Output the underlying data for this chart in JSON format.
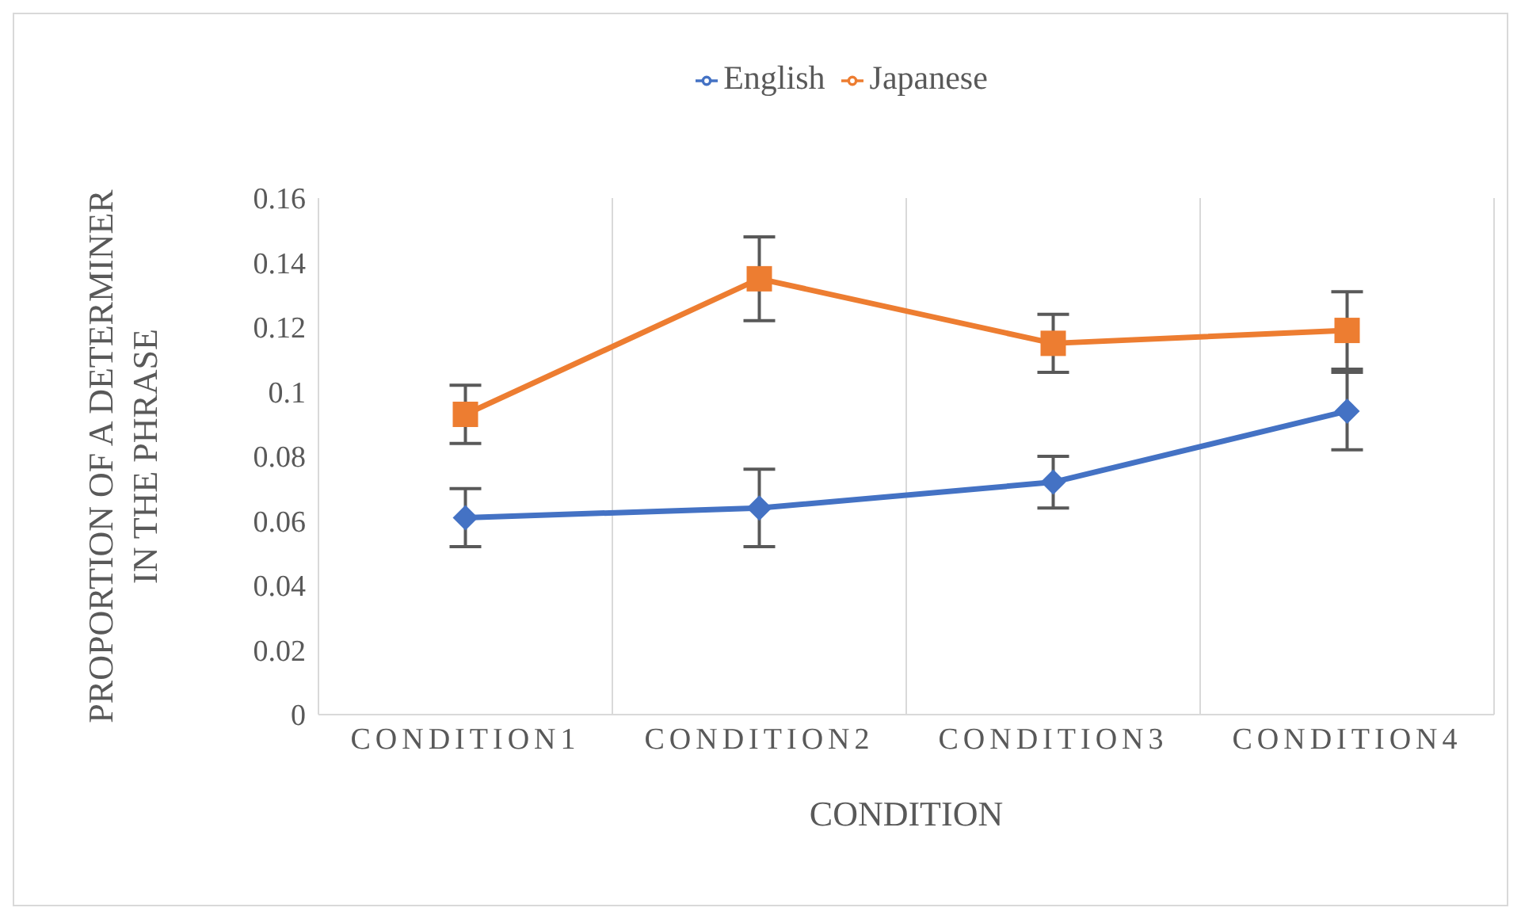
{
  "chart_data": {
    "type": "line",
    "xlabel": "CONDITION",
    "ylabel": "PROPORTION OF A DETERMINER IN THE PHRASE",
    "categories": [
      "CONDITION1",
      "CONDITION2",
      "CONDITION3",
      "CONDITION4"
    ],
    "series": [
      {
        "name": "English",
        "color": "#4472c4",
        "marker": "diamond",
        "values": [
          0.061,
          0.064,
          0.072,
          0.094
        ],
        "errors": [
          0.009,
          0.012,
          0.008,
          0.012
        ]
      },
      {
        "name": "Japanese",
        "color": "#ed7d31",
        "marker": "square",
        "values": [
          0.093,
          0.135,
          0.115,
          0.119
        ],
        "errors": [
          0.009,
          0.013,
          0.009,
          0.012
        ]
      }
    ],
    "ylim": [
      0,
      0.16
    ],
    "yticks": [
      0,
      0.02,
      0.04,
      0.06,
      0.08,
      0.1,
      0.12,
      0.14,
      0.16
    ],
    "grid": "x",
    "legend": "top",
    "line_style": "solid"
  }
}
